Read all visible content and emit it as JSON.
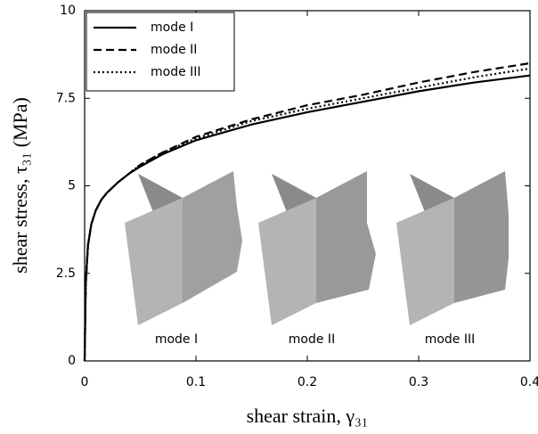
{
  "chart_data": {
    "type": "line",
    "xlabel": "shear strain, γ₃₁",
    "ylabel": "shear stress, τ₃₁ (MPa)",
    "x": [
      0,
      0.001,
      0.003,
      0.006,
      0.01,
      0.015,
      0.02,
      0.03,
      0.04,
      0.05,
      0.07,
      0.1,
      0.15,
      0.2,
      0.25,
      0.3,
      0.35,
      0.4
    ],
    "series": [
      {
        "name": "mode I",
        "color": "#000000",
        "dash": "solid",
        "values": [
          0,
          2.2,
          3.3,
          3.9,
          4.3,
          4.6,
          4.8,
          5.1,
          5.35,
          5.55,
          5.9,
          6.3,
          6.75,
          7.1,
          7.4,
          7.7,
          7.95,
          8.15
        ]
      },
      {
        "name": "mode II",
        "color": "#000000",
        "dash": "dashed",
        "values": [
          0,
          2.2,
          3.3,
          3.9,
          4.3,
          4.6,
          4.8,
          5.1,
          5.35,
          5.6,
          5.95,
          6.4,
          6.9,
          7.3,
          7.6,
          7.95,
          8.25,
          8.5
        ]
      },
      {
        "name": "mode III",
        "color": "#000000",
        "dash": "dotted",
        "values": [
          0,
          2.2,
          3.3,
          3.9,
          4.3,
          4.6,
          4.8,
          5.1,
          5.35,
          5.6,
          5.95,
          6.35,
          6.85,
          7.2,
          7.5,
          7.8,
          8.1,
          8.35
        ]
      }
    ],
    "xlim": [
      0,
      0.4
    ],
    "xticks": [
      0,
      0.1,
      0.2,
      0.3,
      0.4
    ],
    "ylim": [
      0,
      10
    ],
    "yticks": [
      0,
      2.5,
      5,
      7.5,
      10
    ],
    "grid": false,
    "legend": "upper left",
    "annotations": [
      "mode I",
      "mode II",
      "mode III"
    ]
  }
}
